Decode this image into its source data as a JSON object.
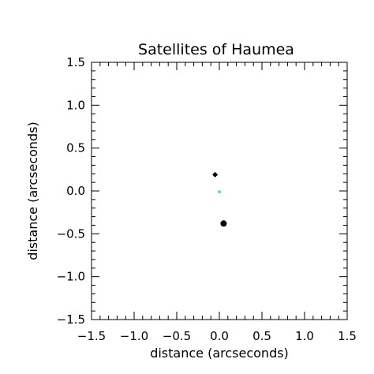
{
  "chart_data": {
    "type": "scatter",
    "title": "Satellites of Haumea",
    "xlabel": "distance (arcseconds)",
    "ylabel": "distance (arcseconds)",
    "xlim": [
      -1.5,
      1.5
    ],
    "ylim": [
      -1.5,
      1.5
    ],
    "grid": false,
    "x_ticks": [
      -1.5,
      -1.0,
      -0.5,
      0.0,
      0.5,
      1.0,
      1.5
    ],
    "y_ticks": [
      -1.5,
      -1.0,
      -0.5,
      0.0,
      0.5,
      1.0,
      1.5
    ],
    "x_tick_labels": [
      "−1.5",
      "−1.0",
      "−0.5",
      "0.0",
      "0.5",
      "1.0",
      "1.5"
    ],
    "y_tick_labels": [
      "−1.5",
      "−1.0",
      "−0.5",
      "0.0",
      "0.5",
      "1.0",
      "1.5"
    ],
    "points": [
      {
        "x": -0.05,
        "y": 0.19,
        "shape": "diamond",
        "color": "#000000"
      },
      {
        "x": 0.0,
        "y": -0.01,
        "shape": "diamond",
        "color": "#40e0e0"
      },
      {
        "x": 0.05,
        "y": -0.38,
        "shape": "circle",
        "color": "#000000"
      }
    ]
  }
}
